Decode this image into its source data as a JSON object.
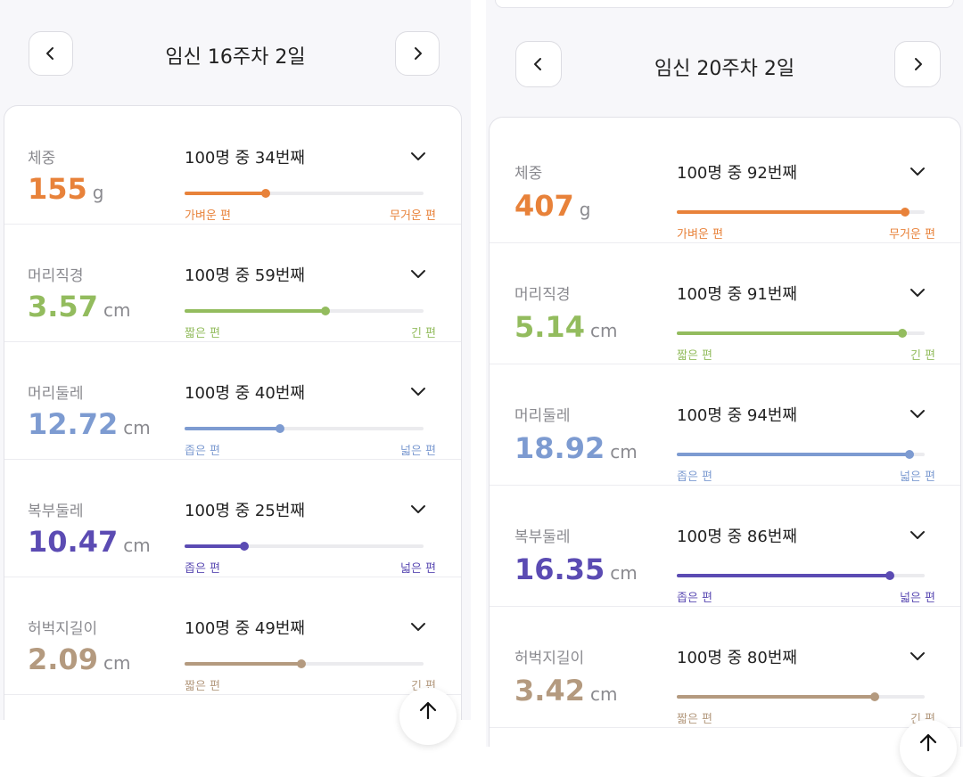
{
  "panels": [
    {
      "title": "임신 16주차 2일",
      "metrics": [
        {
          "label": "체중",
          "value": "155",
          "unit": "g",
          "rank": "100명 중 34번째",
          "percentile": 34,
          "low": "가벼운 편",
          "high": "무거운 편",
          "color": "#e8823a"
        },
        {
          "label": "머리직경",
          "value": "3.57",
          "unit": "cm",
          "rank": "100명 중 59번째",
          "percentile": 59,
          "low": "짧은 편",
          "high": "긴 편",
          "color": "#93bc5e"
        },
        {
          "label": "머리둘레",
          "value": "12.72",
          "unit": "cm",
          "rank": "100명 중 40번째",
          "percentile": 40,
          "low": "좁은 편",
          "high": "넓은 편",
          "color": "#7d9bd1"
        },
        {
          "label": "복부둘레",
          "value": "10.47",
          "unit": "cm",
          "rank": "100명 중 25번째",
          "percentile": 25,
          "low": "좁은 편",
          "high": "넓은 편",
          "color": "#5b4bb3"
        },
        {
          "label": "허벅지길이",
          "value": "2.09",
          "unit": "cm",
          "rank": "100명 중 49번째",
          "percentile": 49,
          "low": "짧은 편",
          "high": "긴 편",
          "color": "#b49a7f"
        }
      ]
    },
    {
      "title": "임신 20주차 2일",
      "metrics": [
        {
          "label": "체중",
          "value": "407",
          "unit": "g",
          "rank": "100명 중 92번째",
          "percentile": 92,
          "low": "가벼운 편",
          "high": "무거운 편",
          "color": "#e8823a"
        },
        {
          "label": "머리직경",
          "value": "5.14",
          "unit": "cm",
          "rank": "100명 중 91번째",
          "percentile": 91,
          "low": "짧은 편",
          "high": "긴 편",
          "color": "#93bc5e"
        },
        {
          "label": "머리둘레",
          "value": "18.92",
          "unit": "cm",
          "rank": "100명 중 94번째",
          "percentile": 94,
          "low": "좁은 편",
          "high": "넓은 편",
          "color": "#7d9bd1"
        },
        {
          "label": "복부둘레",
          "value": "16.35",
          "unit": "cm",
          "rank": "100명 중 86번째",
          "percentile": 86,
          "low": "좁은 편",
          "high": "넓은 편",
          "color": "#5b4bb3"
        },
        {
          "label": "허벅지길이",
          "value": "3.42",
          "unit": "cm",
          "rank": "100명 중 80번째",
          "percentile": 80,
          "low": "짧은 편",
          "high": "긴 편",
          "color": "#b49a7f"
        }
      ]
    }
  ],
  "icons": {
    "prev": "chevron-left-icon",
    "next": "chevron-right-icon",
    "expand": "chevron-down-icon",
    "scroll_top": "arrow-up-icon"
  }
}
